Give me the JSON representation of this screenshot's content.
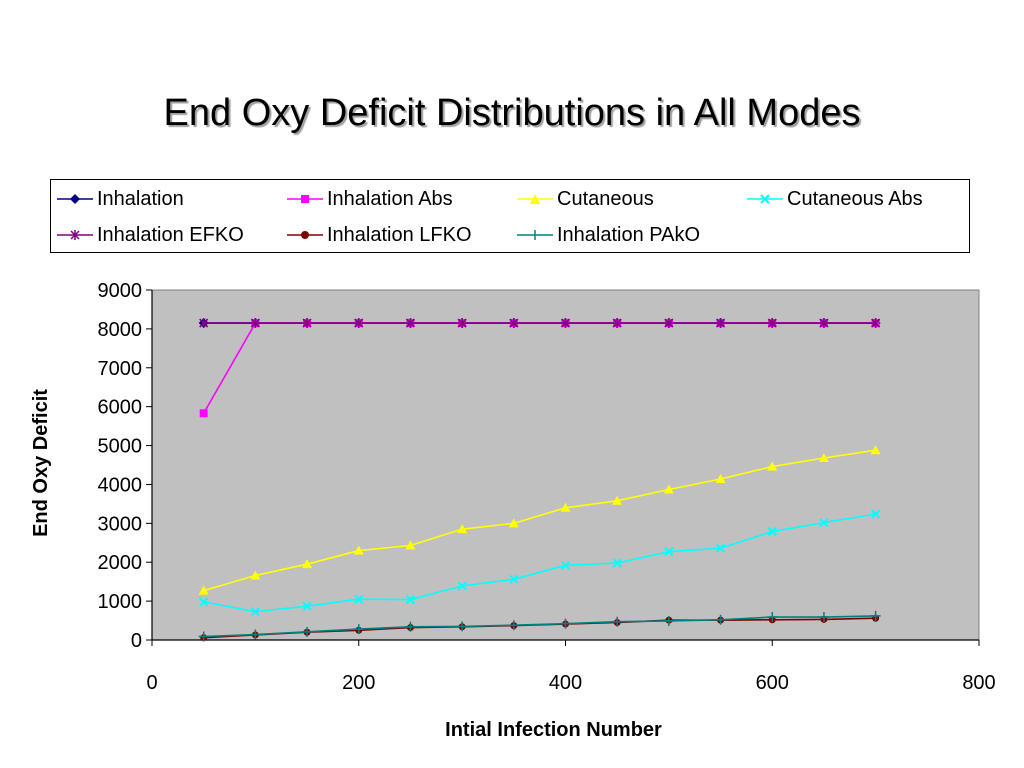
{
  "chart_data": {
    "type": "line",
    "title": "End Oxy Deficit Distributions in All Modes",
    "xlabel": "Intial Infection Number",
    "ylabel": "End Oxy Deficit",
    "xlim": [
      0,
      800
    ],
    "ylim": [
      0,
      9000
    ],
    "xticks": [
      0,
      200,
      400,
      600,
      800
    ],
    "yticks": [
      0,
      1000,
      2000,
      3000,
      4000,
      5000,
      6000,
      7000,
      8000,
      9000
    ],
    "grid": false,
    "plot_background": "#c0c0c0",
    "legend_position": "top",
    "x": [
      50,
      100,
      150,
      200,
      250,
      300,
      350,
      400,
      450,
      500,
      550,
      600,
      650,
      700
    ],
    "series": [
      {
        "name": "Inhalation",
        "color": "#000080",
        "marker": "diamond",
        "values": [
          8150,
          8150,
          8150,
          8150,
          8150,
          8150,
          8150,
          8150,
          8150,
          8150,
          8150,
          8150,
          8150,
          8150
        ]
      },
      {
        "name": "Inhalation Abs",
        "color": "#ff00ff",
        "marker": "square",
        "values": [
          5830,
          8150,
          8150,
          8150,
          8150,
          8150,
          8150,
          8150,
          8150,
          8150,
          8150,
          8150,
          8150,
          8150
        ]
      },
      {
        "name": "Cutaneous",
        "color": "#ffff00",
        "marker": "triangle",
        "values": [
          1270,
          1660,
          1950,
          2300,
          2430,
          2850,
          3000,
          3400,
          3580,
          3870,
          4140,
          4460,
          4680,
          4880
        ]
      },
      {
        "name": "Cutaneous Abs",
        "color": "#00ffff",
        "marker": "x",
        "values": [
          980,
          730,
          870,
          1050,
          1040,
          1390,
          1560,
          1920,
          1980,
          2270,
          2360,
          2790,
          3020,
          3240
        ]
      },
      {
        "name": "Inhalation EFKO",
        "color": "#800080",
        "marker": "star",
        "values": [
          8150,
          8150,
          8150,
          8150,
          8150,
          8150,
          8150,
          8150,
          8150,
          8150,
          8150,
          8150,
          8150,
          8150
        ]
      },
      {
        "name": "Inhalation LFKO",
        "color": "#800000",
        "marker": "circle",
        "values": [
          60,
          130,
          200,
          250,
          320,
          340,
          370,
          410,
          450,
          510,
          510,
          520,
          530,
          560
        ]
      },
      {
        "name": "Inhalation PAkO",
        "color": "#008080",
        "marker": "plus",
        "values": [
          90,
          140,
          210,
          280,
          340,
          350,
          380,
          420,
          470,
          490,
          520,
          590,
          590,
          620
        ]
      }
    ]
  }
}
